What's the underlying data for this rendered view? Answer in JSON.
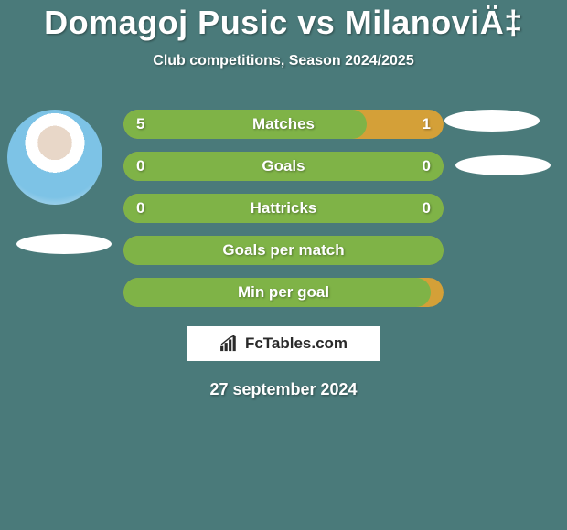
{
  "title": "Domagoj Pusic vs MilanoviÄ‡",
  "subtitle": "Club competitions, Season 2024/2025",
  "date": "27 september 2024",
  "brand": "FcTables.com",
  "colors": {
    "background": "#4a7a7a",
    "bar_green": "#7fb347",
    "bar_orange": "#d4a038",
    "white": "#ffffff",
    "text_dark": "#2a2a2a"
  },
  "bars": [
    {
      "label": "Matches",
      "left_value": "5",
      "right_value": "1",
      "left_fill_pct": 76,
      "left_color": "#7fb347",
      "right_color": "#d4a038"
    },
    {
      "label": "Goals",
      "left_value": "0",
      "right_value": "0",
      "left_fill_pct": 100,
      "left_color": "#7fb347",
      "right_color": "#d4a038"
    },
    {
      "label": "Hattricks",
      "left_value": "0",
      "right_value": "0",
      "left_fill_pct": 100,
      "left_color": "#7fb347",
      "right_color": "#d4a038"
    },
    {
      "label": "Goals per match",
      "left_value": "",
      "right_value": "",
      "left_fill_pct": 100,
      "left_color": "#7fb347",
      "right_color": "#d4a038"
    },
    {
      "label": "Min per goal",
      "left_value": "",
      "right_value": "",
      "left_fill_pct": 96,
      "left_color": "#7fb347",
      "right_color": "#d4a038"
    }
  ]
}
